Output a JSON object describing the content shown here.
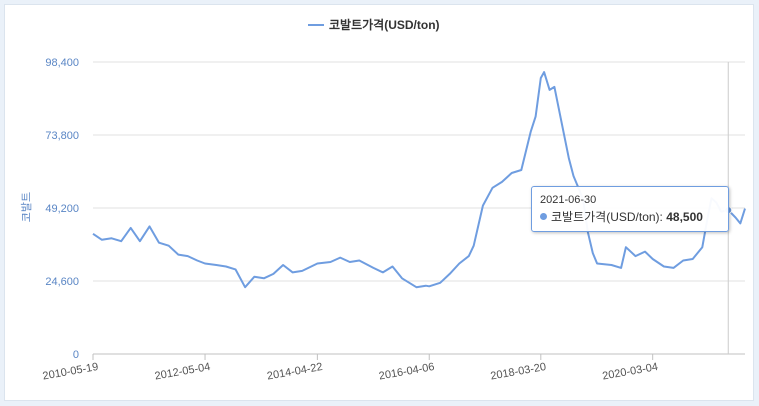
{
  "chart_data": {
    "type": "line",
    "title": "",
    "legend": {
      "label": "코발트가격(USD/ton)",
      "position": "top-center"
    },
    "ylabel": "코발트",
    "xlabel": "",
    "ylim": [
      0,
      98400
    ],
    "yticks": [
      0,
      24600,
      49200,
      73800,
      98400
    ],
    "ytick_labels": [
      "0",
      "24,600",
      "49,200",
      "73,800",
      "98,400"
    ],
    "xlim": [
      "2010-05-19",
      "2021-10-15"
    ],
    "xticks": [
      "2010-05-19",
      "2012-05-04",
      "2014-04-22",
      "2016-04-06",
      "2018-03-20",
      "2020-03-04"
    ],
    "grid": "horizontal",
    "color": "#6f9de0",
    "series": [
      {
        "name": "코발트가격(USD/ton)",
        "points": [
          [
            "2010-05-19",
            40500
          ],
          [
            "2010-07-15",
            38500
          ],
          [
            "2010-09-15",
            39000
          ],
          [
            "2010-11-15",
            38000
          ],
          [
            "2011-01-15",
            42500
          ],
          [
            "2011-03-15",
            38000
          ],
          [
            "2011-05-15",
            43000
          ],
          [
            "2011-07-15",
            37500
          ],
          [
            "2011-09-15",
            36500
          ],
          [
            "2011-11-15",
            33500
          ],
          [
            "2012-01-15",
            33000
          ],
          [
            "2012-03-15",
            31500
          ],
          [
            "2012-05-04",
            30500
          ],
          [
            "2012-07-15",
            30000
          ],
          [
            "2012-09-15",
            29500
          ],
          [
            "2012-11-15",
            28500
          ],
          [
            "2013-01-15",
            22500
          ],
          [
            "2013-03-15",
            26000
          ],
          [
            "2013-05-15",
            25500
          ],
          [
            "2013-07-15",
            27000
          ],
          [
            "2013-09-15",
            30000
          ],
          [
            "2013-11-15",
            27500
          ],
          [
            "2014-01-15",
            28000
          ],
          [
            "2014-04-22",
            30500
          ],
          [
            "2014-07-15",
            31000
          ],
          [
            "2014-09-15",
            32500
          ],
          [
            "2014-11-15",
            31000
          ],
          [
            "2015-01-15",
            31500
          ],
          [
            "2015-04-15",
            29000
          ],
          [
            "2015-06-15",
            27500
          ],
          [
            "2015-08-15",
            29500
          ],
          [
            "2015-10-15",
            25500
          ],
          [
            "2016-01-15",
            22500
          ],
          [
            "2016-03-15",
            23000
          ],
          [
            "2016-04-06",
            22800
          ],
          [
            "2016-06-15",
            24000
          ],
          [
            "2016-08-15",
            27000
          ],
          [
            "2016-10-15",
            30500
          ],
          [
            "2016-12-15",
            33000
          ],
          [
            "2017-01-15",
            36500
          ],
          [
            "2017-03-15",
            50000
          ],
          [
            "2017-05-15",
            56000
          ],
          [
            "2017-07-15",
            58000
          ],
          [
            "2017-09-15",
            61000
          ],
          [
            "2017-11-15",
            62000
          ],
          [
            "2018-01-15",
            75000
          ],
          [
            "2018-02-15",
            80000
          ],
          [
            "2018-03-20",
            93000
          ],
          [
            "2018-04-10",
            95000
          ],
          [
            "2018-05-15",
            89000
          ],
          [
            "2018-06-15",
            90000
          ],
          [
            "2018-08-15",
            74000
          ],
          [
            "2018-09-15",
            66000
          ],
          [
            "2018-10-15",
            60000
          ],
          [
            "2018-11-15",
            56000
          ],
          [
            "2018-12-15",
            52000
          ],
          [
            "2019-01-15",
            41000
          ],
          [
            "2019-02-15",
            34000
          ],
          [
            "2019-03-15",
            30500
          ],
          [
            "2019-06-15",
            30000
          ],
          [
            "2019-08-15",
            29000
          ],
          [
            "2019-09-15",
            36000
          ],
          [
            "2019-11-15",
            33000
          ],
          [
            "2020-01-15",
            34500
          ],
          [
            "2020-03-04",
            32000
          ],
          [
            "2020-05-15",
            29500
          ],
          [
            "2020-07-15",
            29000
          ],
          [
            "2020-09-15",
            31500
          ],
          [
            "2020-11-15",
            32000
          ],
          [
            "2021-01-15",
            36000
          ],
          [
            "2021-02-15",
            45000
          ],
          [
            "2021-03-15",
            52500
          ],
          [
            "2021-04-15",
            51000
          ],
          [
            "2021-05-15",
            48000
          ],
          [
            "2021-06-30",
            48500
          ],
          [
            "2021-08-15",
            46000
          ],
          [
            "2021-09-15",
            44000
          ],
          [
            "2021-10-15",
            49000
          ]
        ]
      }
    ],
    "tooltip": {
      "date": "2021-06-30",
      "series": "코발트가격(USD/ton)",
      "value": "48,500"
    }
  }
}
